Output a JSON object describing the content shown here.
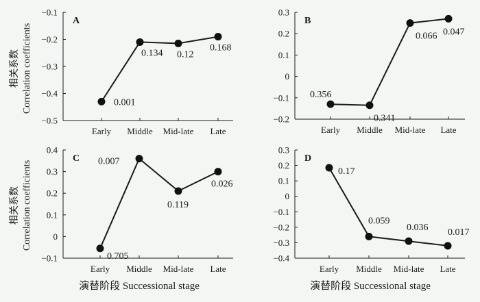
{
  "figure": {
    "ylabel_cn": "相关系数",
    "ylabel_en": "Correlation coefficients",
    "xlabel": "演替阶段 Successional stage"
  },
  "chart_data": [
    {
      "panel": "A",
      "type": "line",
      "categories": [
        "Early",
        "Middle",
        "Mid-late",
        "Late"
      ],
      "values": [
        -0.43,
        -0.21,
        -0.215,
        -0.19
      ],
      "labels": [
        "0.001",
        "0.134",
        "0.12",
        "0.168"
      ],
      "yticks": [
        "−0.1",
        "−0.2",
        "−0.3",
        "−0.4",
        "−0.5"
      ],
      "ylim": [
        -0.5,
        -0.1
      ]
    },
    {
      "panel": "B",
      "type": "line",
      "categories": [
        "Early",
        "Middle",
        "Mid-late",
        "Late"
      ],
      "values": [
        -0.13,
        -0.135,
        0.25,
        0.27
      ],
      "labels": [
        "0.356",
        "0.341",
        "0.066",
        "0.047"
      ],
      "yticks": [
        "0.3",
        "0.2",
        "0.1",
        "0",
        "−0.1",
        "−0.2"
      ],
      "ylim": [
        -0.2,
        0.3
      ]
    },
    {
      "panel": "C",
      "type": "line",
      "categories": [
        "Early",
        "Middle",
        "Mid-late",
        "Late"
      ],
      "values": [
        -0.055,
        0.36,
        0.21,
        0.3
      ],
      "labels": [
        "0.705",
        "0.007",
        "0.119",
        "0.026"
      ],
      "yticks": [
        "0.4",
        "0.3",
        "0.2",
        "0.1",
        "0",
        "−0.1"
      ],
      "ylim": [
        -0.1,
        0.4
      ]
    },
    {
      "panel": "D",
      "type": "line",
      "categories": [
        "Early",
        "Middle",
        "Mid-late",
        "Late"
      ],
      "values": [
        0.185,
        -0.26,
        -0.29,
        -0.32
      ],
      "labels": [
        "0.17",
        "0.059",
        "0.036",
        "0.017"
      ],
      "yticks": [
        "0.3",
        "0.2",
        "0.1",
        "0",
        "−0.1",
        "−0.2",
        "−0.3",
        "−0.4"
      ],
      "ylim": [
        -0.4,
        0.3
      ]
    }
  ]
}
